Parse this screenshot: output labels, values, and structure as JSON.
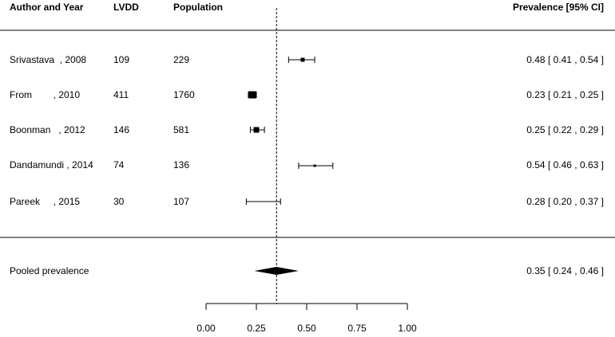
{
  "headers": {
    "author": "Author and Year",
    "lvdd": "LVDD",
    "population": "Population",
    "prevalence": "Prevalence [95% CI]"
  },
  "pooled": {
    "label": "Pooled prevalence",
    "estimate": 0.35,
    "lower": 0.24,
    "upper": 0.46,
    "ci_text": "0.35 [ 0.24 , 0.46 ]"
  },
  "chart_data": {
    "type": "scatter",
    "subtype": "forest-plot",
    "xlim": [
      0,
      1
    ],
    "xticks": [
      "0.00",
      "0.25",
      "0.50",
      "0.75",
      "1.00"
    ],
    "reference_line": 0.35,
    "studies": [
      {
        "label": "Srivastava  , 2008",
        "lvdd": "109",
        "population": "229",
        "estimate": 0.48,
        "lower": 0.41,
        "upper": 0.54,
        "ci_text": "0.48 [ 0.41 , 0.54 ]"
      },
      {
        "label": "From        , 2010",
        "lvdd": "411",
        "population": "1760",
        "estimate": 0.23,
        "lower": 0.21,
        "upper": 0.25,
        "ci_text": "0.23 [ 0.21 , 0.25 ]"
      },
      {
        "label": "Boonman   , 2012",
        "lvdd": "146",
        "population": "581",
        "estimate": 0.25,
        "lower": 0.22,
        "upper": 0.29,
        "ci_text": "0.25 [ 0.22 , 0.29 ]"
      },
      {
        "label": "Dandamundi , 2014",
        "lvdd": "74",
        "population": "136",
        "estimate": 0.54,
        "lower": 0.46,
        "upper": 0.63,
        "ci_text": "0.54 [ 0.46 , 0.63 ]"
      },
      {
        "label": "Pareek     , 2015",
        "lvdd": "30",
        "population": "107",
        "estimate": 0.28,
        "lower": 0.2,
        "upper": 0.37,
        "ci_text": "0.28 [ 0.20 , 0.37 ]"
      }
    ]
  }
}
